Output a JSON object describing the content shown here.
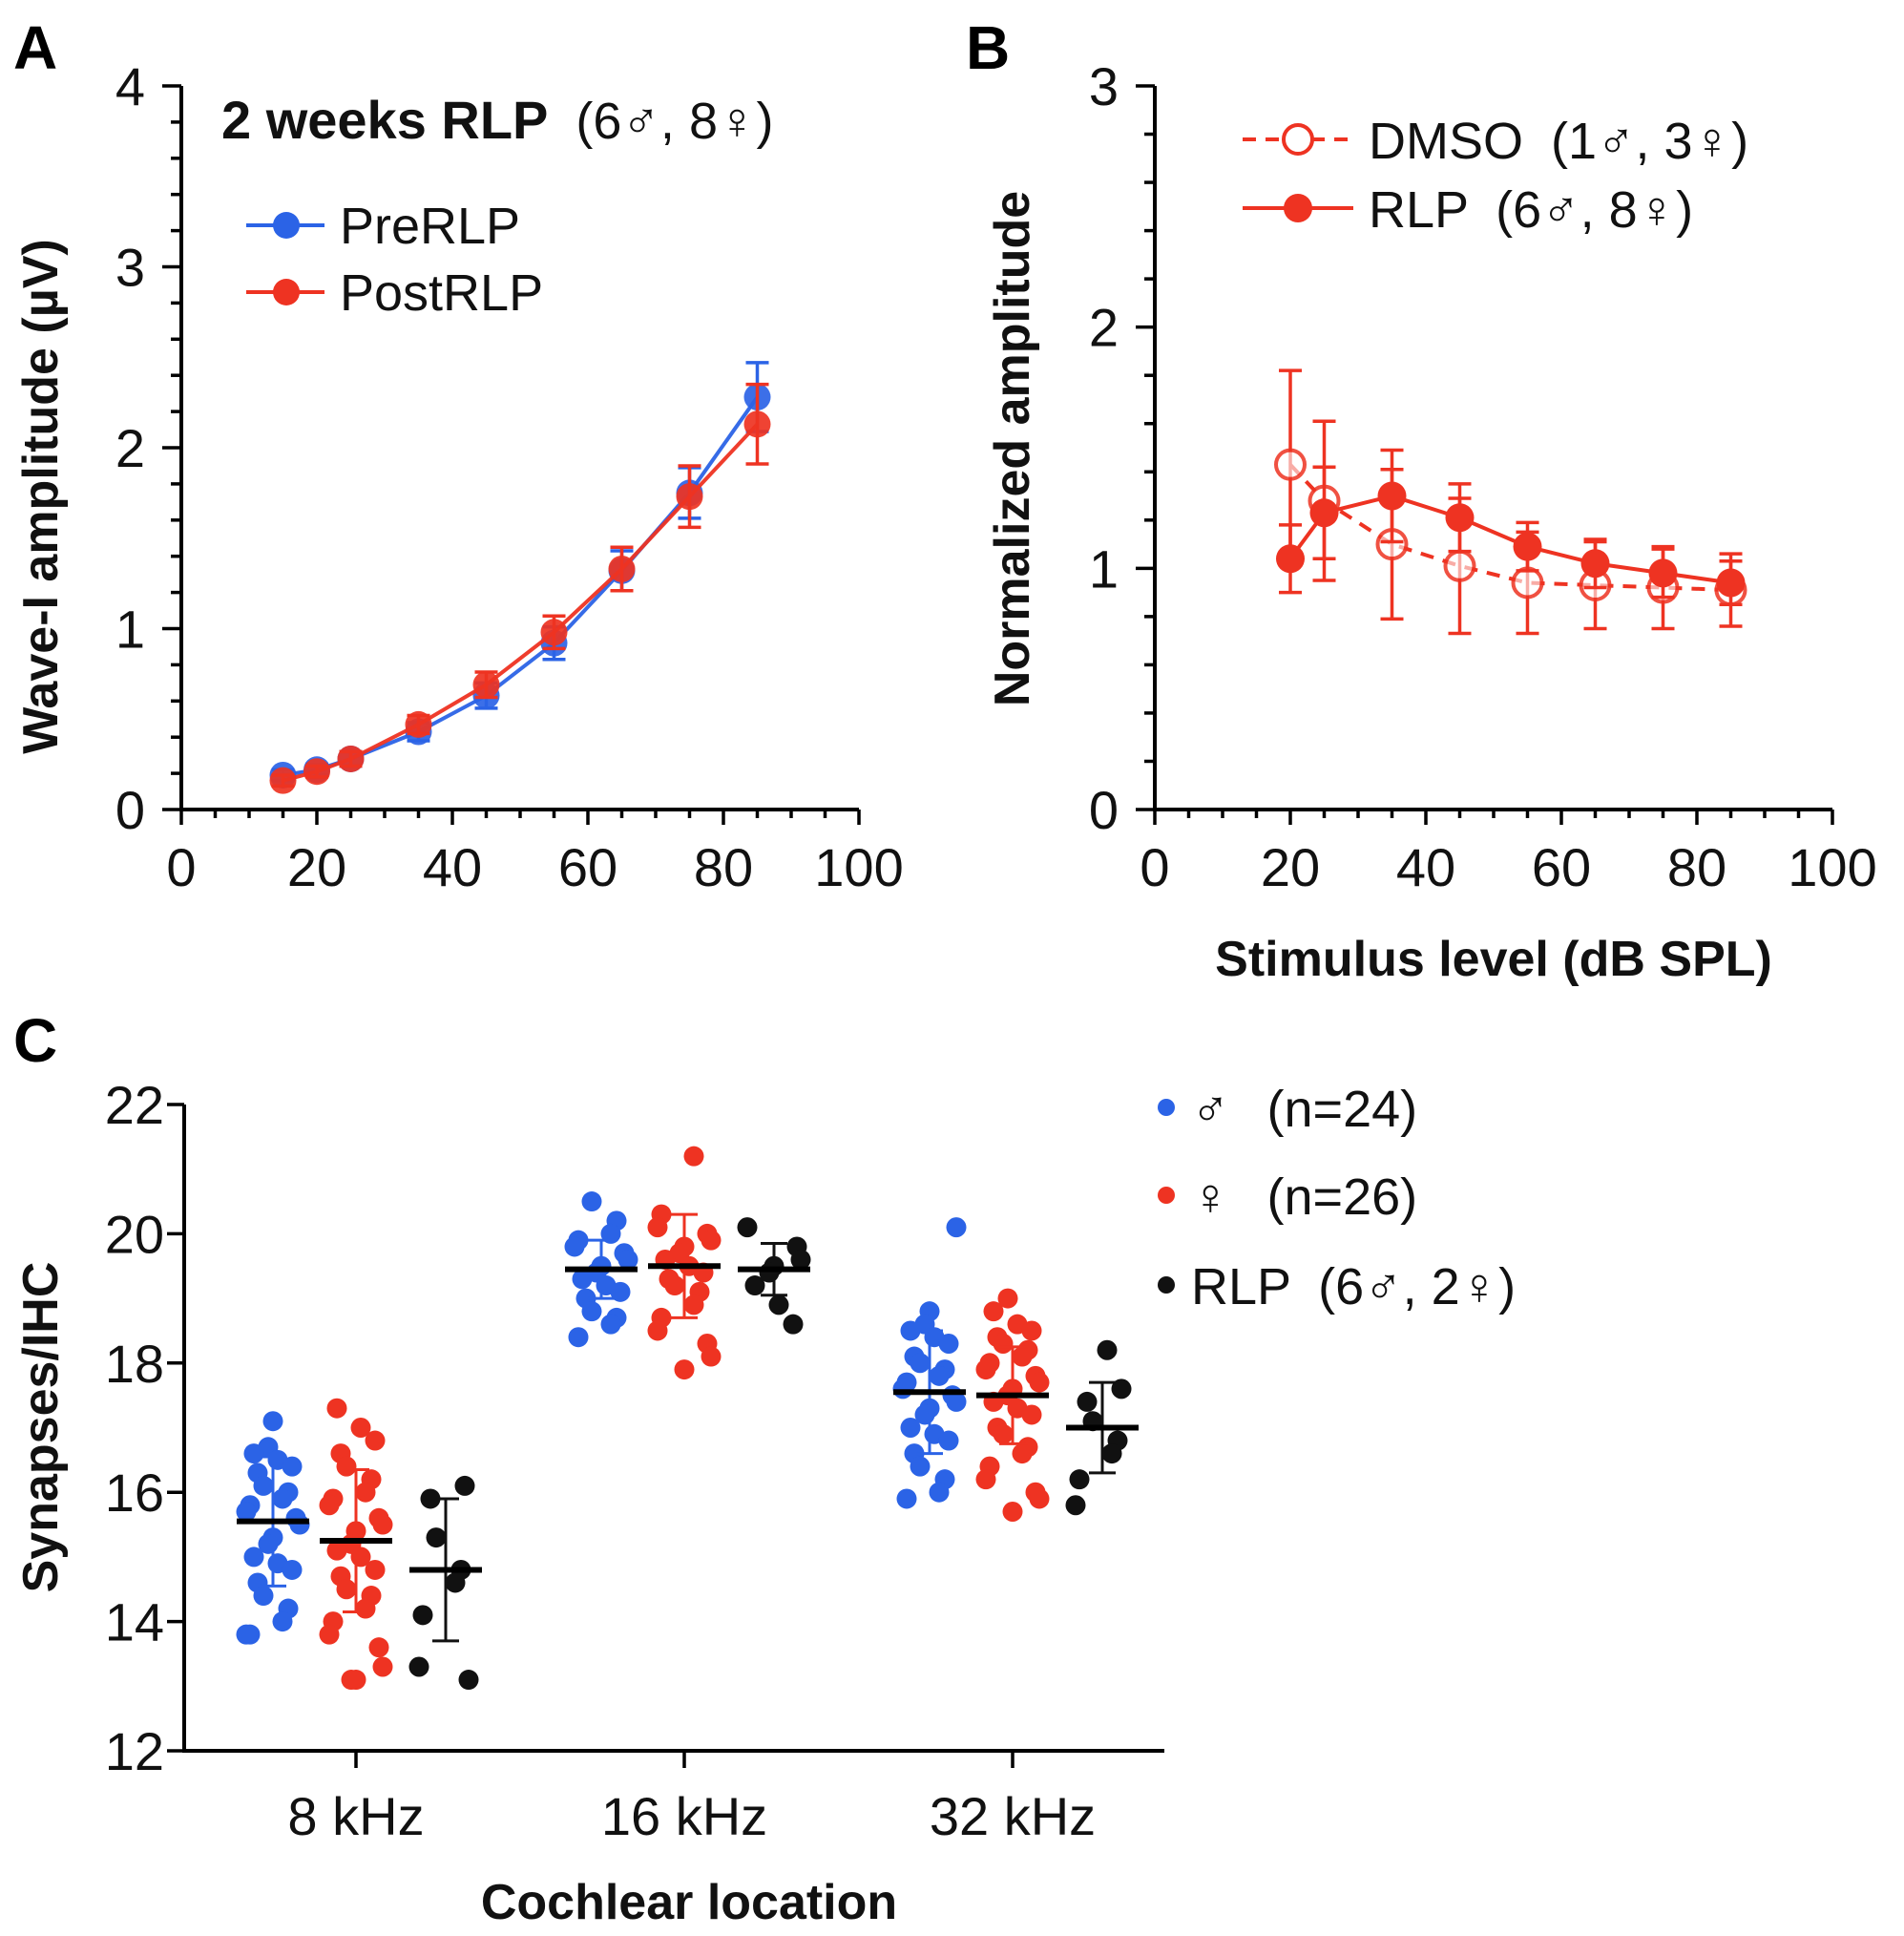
{
  "colors": {
    "blue": "#2b63e6",
    "red": "#ee3322",
    "black": "#111111",
    "male_text": "#1a1adc",
    "female_text": "#e8231b"
  },
  "chart_data": [
    {
      "panel": "A",
      "type": "line",
      "title_bold": "2 weeks RLP",
      "title_rest": "(6♂, 8♀)",
      "xlabel": "",
      "ylabel": "Wave-I amplitude (µV)",
      "xlim": [
        0,
        100
      ],
      "ylim": [
        0,
        4
      ],
      "xticks": [
        "0",
        "20",
        "40",
        "60",
        "80",
        "100"
      ],
      "yticks": [
        "0",
        "1",
        "2",
        "3",
        "4"
      ],
      "series": [
        {
          "name": "PreRLP",
          "color": "blue",
          "x": [
            15,
            20,
            25,
            35,
            45,
            55,
            65,
            75,
            85
          ],
          "y": [
            0.19,
            0.22,
            0.28,
            0.43,
            0.63,
            0.92,
            1.32,
            1.75,
            2.28
          ],
          "err": [
            0.03,
            0.03,
            0.04,
            0.05,
            0.07,
            0.09,
            0.11,
            0.14,
            0.19
          ]
        },
        {
          "name": "PostRLP",
          "color": "red",
          "x": [
            15,
            20,
            25,
            35,
            45,
            55,
            65,
            75,
            85
          ],
          "y": [
            0.16,
            0.21,
            0.28,
            0.47,
            0.69,
            0.98,
            1.33,
            1.73,
            2.13
          ],
          "err": [
            0.03,
            0.03,
            0.04,
            0.05,
            0.07,
            0.09,
            0.12,
            0.17,
            0.22
          ]
        }
      ]
    },
    {
      "panel": "B",
      "type": "line",
      "xlabel": "Stimulus level (dB SPL)",
      "ylabel": "Normalized amplitude",
      "xlim": [
        0,
        100
      ],
      "ylim": [
        0,
        3
      ],
      "xticks": [
        "0",
        "20",
        "40",
        "60",
        "80",
        "100"
      ],
      "yticks": [
        "0",
        "1",
        "2",
        "3"
      ],
      "series": [
        {
          "name": "DMSO",
          "legend_rest": "(1♂, 3♀)",
          "style": "dashed-open",
          "color": "red",
          "x": [
            20,
            25,
            35,
            45,
            55,
            65,
            75,
            85
          ],
          "y": [
            1.43,
            1.28,
            1.1,
            1.01,
            0.94,
            0.93,
            0.92,
            0.91
          ],
          "err": [
            0.39,
            0.33,
            0.31,
            0.28,
            0.21,
            0.18,
            0.17,
            0.15
          ]
        },
        {
          "name": "RLP",
          "legend_rest": "(6♂, 8♀)",
          "style": "solid-filled",
          "color": "red",
          "x": [
            20,
            25,
            35,
            45,
            55,
            65,
            75,
            85
          ],
          "y": [
            1.04,
            1.23,
            1.3,
            1.21,
            1.09,
            1.02,
            0.98,
            0.94
          ],
          "err": [
            0.14,
            0.19,
            0.19,
            0.14,
            0.1,
            0.1,
            0.1,
            0.09
          ]
        }
      ]
    },
    {
      "panel": "C",
      "type": "scatter",
      "xlabel": "Cochlear location",
      "ylabel": "Synapses/IHC",
      "ylim": [
        12,
        22
      ],
      "yticks": [
        "12",
        "14",
        "16",
        "18",
        "20",
        "22"
      ],
      "categories": [
        "8 kHz",
        "16 kHz",
        "32 kHz"
      ],
      "groups": [
        {
          "name": "♂",
          "legend_rest": "(n=24)",
          "color": "blue",
          "mean": [
            15.55,
            19.45,
            17.55
          ],
          "sd": [
            1.0,
            0.45,
            0.95
          ],
          "points": [
            [
              17.1,
              16.7,
              16.6,
              16.5,
              16.4,
              16.3,
              16.1,
              16.0,
              15.9,
              15.8,
              15.7,
              15.6,
              15.5,
              15.3,
              15.2,
              15.0,
              14.9,
              14.8,
              14.6,
              14.4,
              14.2,
              14.0,
              13.8,
              13.8
            ],
            [
              20.5,
              20.2,
              20.0,
              19.9,
              19.8,
              19.7,
              19.6,
              19.5,
              19.4,
              19.3,
              19.2,
              19.1,
              19.0,
              18.8,
              18.7,
              18.6,
              18.4
            ],
            [
              20.1,
              18.8,
              18.6,
              18.5,
              18.4,
              18.3,
              18.1,
              18.0,
              17.9,
              17.8,
              17.7,
              17.6,
              17.5,
              17.4,
              17.3,
              17.2,
              17.0,
              16.9,
              16.8,
              16.6,
              16.4,
              16.2,
              16.0,
              15.9
            ]
          ]
        },
        {
          "name": "♀",
          "legend_rest": "(n=26)",
          "color": "red",
          "mean": [
            15.25,
            19.5,
            17.5
          ],
          "sd": [
            1.1,
            0.8,
            0.75
          ],
          "points": [
            [
              17.3,
              17.0,
              16.8,
              16.6,
              16.4,
              16.2,
              16.0,
              15.9,
              15.8,
              15.6,
              15.5,
              15.4,
              15.2,
              15.1,
              15.0,
              14.8,
              14.7,
              14.5,
              14.4,
              14.2,
              14.0,
              13.8,
              13.6,
              13.3,
              13.1,
              13.1
            ],
            [
              21.2,
              20.3,
              20.1,
              20.0,
              19.9,
              19.8,
              19.7,
              19.6,
              19.5,
              19.4,
              19.3,
              19.2,
              19.1,
              18.9,
              18.7,
              18.5,
              18.3,
              18.1,
              17.9
            ],
            [
              19.0,
              18.8,
              18.6,
              18.5,
              18.4,
              18.3,
              18.2,
              18.1,
              18.0,
              17.9,
              17.8,
              17.7,
              17.6,
              17.5,
              17.4,
              17.3,
              17.2,
              17.0,
              16.9,
              16.7,
              16.6,
              16.4,
              16.2,
              16.0,
              15.9,
              15.7
            ]
          ]
        },
        {
          "name": "RLP",
          "legend_rest": "(6♂, 2♀)",
          "color": "black",
          "mean": [
            14.8,
            19.45,
            17.0
          ],
          "sd": [
            1.1,
            0.4,
            0.7
          ],
          "points": [
            [
              16.1,
              15.9,
              15.3,
              14.8,
              14.6,
              14.1,
              13.3,
              13.1
            ],
            [
              20.1,
              19.8,
              19.6,
              19.5,
              19.4,
              19.2,
              18.9,
              18.6
            ],
            [
              18.2,
              17.6,
              17.4,
              17.1,
              16.8,
              16.6,
              16.2,
              15.8
            ]
          ]
        }
      ]
    }
  ]
}
